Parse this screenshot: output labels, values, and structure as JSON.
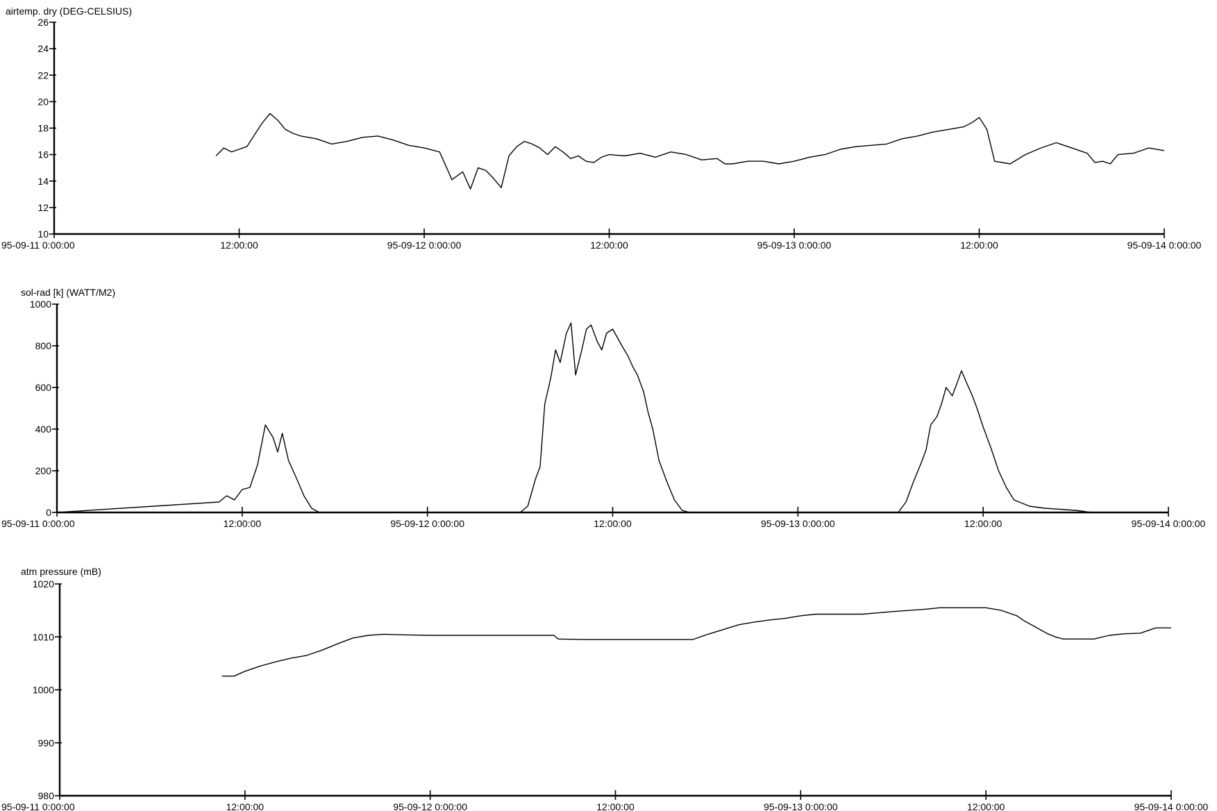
{
  "chart_data": [
    {
      "type": "line",
      "ylabel": "airtemp. dry (DEG-CELSIUS)",
      "ylim": [
        10,
        26
      ],
      "yticks": [
        10,
        12,
        14,
        16,
        18,
        20,
        22,
        24,
        26
      ],
      "xlim_hours": [
        0,
        72
      ],
      "xticks": [
        {
          "h": 0,
          "label": "95-09-11 0:00:00"
        },
        {
          "h": 12,
          "label": "12:00:00"
        },
        {
          "h": 24,
          "label": "95-09-12 0:00:00"
        },
        {
          "h": 36,
          "label": "12:00:00"
        },
        {
          "h": 48,
          "label": "95-09-13 0:00:00"
        },
        {
          "h": 60,
          "label": "12:00:00"
        },
        {
          "h": 72,
          "label": "95-09-14 0:00:00"
        }
      ],
      "series": [
        {
          "x": [
            10.5,
            11.0,
            11.5,
            12.0,
            12.5,
            13.0,
            13.5,
            14.0,
            14.5,
            15.0,
            15.5,
            16.0,
            17.0,
            18.0,
            19.0,
            20.0,
            21.0,
            22.0,
            23.0,
            24.0,
            25.0,
            25.8,
            26.5,
            27.0,
            27.5,
            28.0,
            28.5,
            29.0,
            29.5,
            30.0,
            30.5,
            31.0,
            31.5,
            32.0,
            32.5,
            33.0,
            33.5,
            34.0,
            34.5,
            35.0,
            35.5,
            36.0,
            37.0,
            38.0,
            39.0,
            40.0,
            41.0,
            42.0,
            43.0,
            43.5,
            44.0,
            45.0,
            46.0,
            47.0,
            48.0,
            49.0,
            50.0,
            51.0,
            52.0,
            53.0,
            54.0,
            55.0,
            56.0,
            57.0,
            58.0,
            59.0,
            59.5,
            60.0,
            60.5,
            61.0,
            62.0,
            63.0,
            64.0,
            65.0,
            66.0,
            67.0,
            67.5,
            68.0,
            68.5,
            69.0,
            70.0,
            71.0,
            72.0
          ],
          "y": [
            15.9,
            16.5,
            16.2,
            16.4,
            16.6,
            17.5,
            18.4,
            19.1,
            18.6,
            17.9,
            17.6,
            17.4,
            17.2,
            16.8,
            17.0,
            17.3,
            17.4,
            17.1,
            16.7,
            16.5,
            16.2,
            14.1,
            14.7,
            13.4,
            15.0,
            14.8,
            14.2,
            13.5,
            15.9,
            16.6,
            17.0,
            16.8,
            16.5,
            16.0,
            16.6,
            16.2,
            15.7,
            15.9,
            15.5,
            15.4,
            15.8,
            16.0,
            15.9,
            16.1,
            15.8,
            16.2,
            16.0,
            15.6,
            15.7,
            15.3,
            15.3,
            15.5,
            15.5,
            15.3,
            15.5,
            15.8,
            16.0,
            16.4,
            16.6,
            16.7,
            16.8,
            17.2,
            17.4,
            17.7,
            17.9,
            18.1,
            18.4,
            18.8,
            17.9,
            15.5,
            15.3,
            16.0,
            16.5,
            16.9,
            16.5,
            16.1,
            15.4,
            15.5,
            15.3,
            16.0,
            16.1,
            16.5,
            16.3
          ]
        }
      ]
    },
    {
      "type": "line",
      "ylabel": "sol-rad [k] (WATT/M2)",
      "ylim": [
        0,
        1000
      ],
      "yticks": [
        0,
        200,
        400,
        600,
        800,
        1000
      ],
      "xlim_hours": [
        0,
        72
      ],
      "xticks": [
        {
          "h": 0,
          "label": "95-09-11 0:00:00"
        },
        {
          "h": 12,
          "label": "12:00:00"
        },
        {
          "h": 24,
          "label": "95-09-12 0:00:00"
        },
        {
          "h": 36,
          "label": "12:00:00"
        },
        {
          "h": 48,
          "label": "95-09-13 0:00:00"
        },
        {
          "h": 60,
          "label": "12:00:00"
        },
        {
          "h": 72,
          "label": "95-09-14 0:00:00"
        }
      ],
      "series": [
        {
          "x": [
            0,
            10.5,
            11.0,
            11.5,
            12.0,
            12.5,
            13.0,
            13.5,
            14.0,
            14.3,
            14.6,
            15.0,
            15.3,
            15.6,
            16.0,
            16.5,
            17.0,
            17.5,
            30.0,
            30.5,
            31.0,
            31.3,
            31.6,
            32.0,
            32.3,
            32.6,
            33.0,
            33.3,
            33.6,
            34.0,
            34.3,
            34.6,
            35.0,
            35.3,
            35.6,
            36.0,
            36.3,
            36.6,
            37.0,
            37.3,
            37.6,
            38.0,
            38.3,
            38.6,
            39.0,
            39.5,
            40.0,
            40.5,
            41.0,
            41.5,
            42.0,
            42.5,
            43.0,
            54.5,
            55.0,
            55.5,
            56.0,
            56.3,
            56.6,
            57.0,
            57.3,
            57.6,
            58.0,
            58.3,
            58.6,
            59.0,
            59.3,
            59.6,
            60.0,
            60.5,
            61.0,
            61.5,
            62.0,
            63.0,
            64.0,
            65.0,
            66.0,
            67.0,
            72.0
          ],
          "y": [
            0,
            50,
            80,
            60,
            110,
            120,
            230,
            420,
            360,
            290,
            380,
            250,
            200,
            150,
            80,
            20,
            0,
            0,
            0,
            30,
            160,
            220,
            520,
            650,
            780,
            720,
            860,
            910,
            660,
            780,
            880,
            900,
            820,
            780,
            860,
            880,
            840,
            800,
            750,
            700,
            660,
            580,
            480,
            400,
            250,
            150,
            60,
            10,
            0,
            0,
            0,
            0,
            0,
            0,
            50,
            150,
            240,
            300,
            420,
            460,
            520,
            600,
            560,
            620,
            680,
            610,
            560,
            500,
            410,
            310,
            200,
            120,
            60,
            30,
            20,
            15,
            10,
            0,
            0
          ]
        }
      ]
    },
    {
      "type": "line",
      "ylabel": "atm pressure (mB)",
      "ylim": [
        980,
        1020
      ],
      "yticks": [
        980,
        990,
        1000,
        1010,
        1020
      ],
      "xlim_hours": [
        0,
        72
      ],
      "xticks": [
        {
          "h": 0,
          "label": "95-09-11 0:00:00"
        },
        {
          "h": 12,
          "label": "12:00:00"
        },
        {
          "h": 24,
          "label": "95-09-12 0:00:00"
        },
        {
          "h": 36,
          "label": "12:00:00"
        },
        {
          "h": 48,
          "label": "95-09-13 0:00:00"
        },
        {
          "h": 60,
          "label": "12:00:00"
        },
        {
          "h": 72,
          "label": "95-09-14 0:00:00"
        }
      ],
      "series": [
        {
          "x": [
            10.5,
            11.3,
            12.0,
            13.0,
            14.0,
            15.0,
            16.0,
            17.0,
            18.0,
            19.0,
            20.0,
            21.0,
            22.0,
            24.0,
            26.0,
            28.0,
            30.0,
            32.0,
            32.3,
            34.0,
            36.0,
            38.0,
            40.0,
            41.0,
            42.0,
            43.0,
            44.0,
            45.0,
            46.0,
            47.0,
            48.0,
            49.0,
            50.0,
            52.0,
            54.0,
            56.0,
            57.0,
            58.0,
            60.0,
            61.0,
            62.0,
            62.5,
            63.0,
            63.5,
            64.0,
            64.5,
            65.0,
            65.5,
            66.0,
            67.0,
            68.0,
            69.0,
            70.0,
            71.0,
            72.0
          ],
          "y": [
            1002.6,
            1002.6,
            1003.5,
            1004.5,
            1005.3,
            1006.0,
            1006.5,
            1007.5,
            1008.7,
            1009.8,
            1010.3,
            1010.5,
            1010.4,
            1010.3,
            1010.3,
            1010.3,
            1010.3,
            1010.3,
            1009.6,
            1009.5,
            1009.5,
            1009.5,
            1009.5,
            1009.5,
            1010.5,
            1011.4,
            1012.3,
            1012.8,
            1013.2,
            1013.5,
            1014.0,
            1014.3,
            1014.3,
            1014.3,
            1014.8,
            1015.2,
            1015.5,
            1015.5,
            1015.5,
            1015.0,
            1014.0,
            1013.0,
            1012.2,
            1011.4,
            1010.6,
            1010.0,
            1009.6,
            1009.6,
            1009.6,
            1009.6,
            1010.3,
            1010.6,
            1010.7,
            1011.7,
            1011.7
          ]
        }
      ]
    }
  ]
}
